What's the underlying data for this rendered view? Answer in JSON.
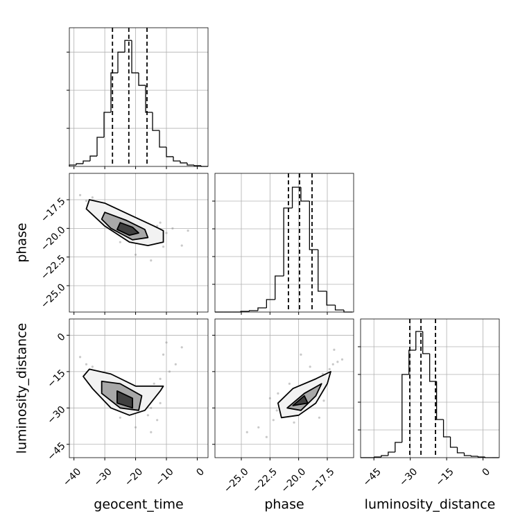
{
  "chart_data": {
    "type": "corner",
    "parameters": [
      {
        "name": "geocent_time",
        "lim": [
          -41.5,
          3.5
        ],
        "ticks": [
          {
            "value": -40,
            "label": "−40"
          },
          {
            "value": -30,
            "label": "−30"
          },
          {
            "value": -20,
            "label": "−20"
          },
          {
            "value": -10,
            "label": "−10"
          },
          0
        ],
        "quantiles": [
          -27.5,
          -22.2,
          -16.3
        ],
        "hist": {
          "bins": [
            -41.5,
            -39.25,
            -37,
            -34.75,
            -32.5,
            -30.25,
            -28,
            -25.75,
            -23.5,
            -21.25,
            -19,
            -16.75,
            -14.5,
            -12.25,
            -10,
            -7.75,
            -5.5,
            -3.25,
            -1,
            1.25,
            3.5
          ],
          "counts": [
            9,
            18,
            36,
            68,
            191,
            355,
            614,
            750,
            827,
            614,
            532,
            355,
            236,
            127,
            64,
            36,
            23,
            9,
            5,
            0
          ],
          "ylim": [
            0,
            910
          ],
          "yticks": [
            250,
            500,
            750
          ]
        }
      },
      {
        "name": "phase",
        "lim": [
          -27.3,
          -15.2
        ],
        "ticks": [
          {
            "value": -25,
            "label": "−25.0"
          },
          {
            "value": -22.5,
            "label": "−22.5"
          },
          {
            "value": -20,
            "label": "−20.0"
          },
          {
            "value": -17.5,
            "label": "−17.5"
          }
        ],
        "quantiles": [
          -20.89,
          -19.92,
          -18.83
        ],
        "hist": {
          "bins": [
            -27.3,
            -26.55,
            -25.8,
            -25.05,
            -24.3,
            -23.55,
            -22.8,
            -22.05,
            -21.3,
            -20.55,
            -19.8,
            -19.05,
            -18.3,
            -17.55,
            -16.8,
            -16.05,
            -15.3
          ],
          "counts": [
            0,
            0,
            0,
            5,
            10,
            30,
            90,
            260,
            750,
            900,
            800,
            450,
            150,
            50,
            15,
            0
          ],
          "ylim": [
            0,
            1000
          ],
          "yticks": [
            200,
            400,
            600,
            800
          ]
        }
      },
      {
        "name": "luminosity_distance",
        "lim": [
          -50.5,
          6.7
        ],
        "ticks": [
          {
            "value": -45,
            "label": "−45"
          },
          {
            "value": -30,
            "label": "−30"
          },
          {
            "value": -15,
            "label": "−15"
          },
          0
        ],
        "quantiles": [
          -30.2,
          -25.6,
          -19.6
        ],
        "hist": {
          "bins": [
            -50.5,
            -47.65,
            -44.8,
            -41.95,
            -39.1,
            -36.25,
            -33.4,
            -30.55,
            -27.7,
            -24.85,
            -22,
            -19.15,
            -16.3,
            -13.45,
            -10.6,
            -7.75,
            -4.9,
            -2.05,
            0.8,
            3.65,
            6.5
          ],
          "counts": [
            0,
            0,
            5,
            15,
            40,
            110,
            600,
            775,
            910,
            750,
            550,
            275,
            150,
            75,
            35,
            15,
            10,
            5,
            0,
            0
          ],
          "ylim": [
            0,
            1000
          ],
          "yticks": [
            200,
            400,
            600,
            800
          ]
        }
      }
    ],
    "pairs": [
      {
        "x": 0,
        "y": 1,
        "points": {
          "x": [
            -38,
            -36,
            -34,
            -33,
            -31,
            -30,
            -28,
            -27,
            -26,
            -25,
            -24,
            -23,
            -22,
            -21,
            -20,
            -19,
            -18,
            -17,
            -16,
            -15,
            -14,
            -13,
            -12,
            -11,
            -10,
            -8,
            -5,
            -3,
            -20,
            -25,
            -15,
            -12
          ],
          "y": [
            -17.1,
            -17.6,
            -17.3,
            -18.2,
            -17.9,
            -18.6,
            -18.4,
            -19.2,
            -18.9,
            -19.5,
            -19.1,
            -20.2,
            -19.7,
            -20.5,
            -19.9,
            -21,
            -20.3,
            -21.4,
            -20.6,
            -20.1,
            -21.2,
            -19.8,
            -20.9,
            -21.6,
            -20.4,
            -20,
            -21.5,
            -20.2,
            -22.3,
            -21.2,
            -22.8,
            -19.5
          ]
        },
        "contours": [
          {
            "x": [
              -35,
              -30,
              -22,
              -14,
              -11,
              -11,
              -16,
              -22,
              -30,
              -36
            ],
            "y": [
              -17.5,
              -17.8,
              -18.8,
              -19.8,
              -20.2,
              -21.2,
              -21.5,
              -21.2,
              -19.8,
              -18.3
            ]
          },
          {
            "x": [
              -30,
              -23,
              -17,
              -16,
              -21,
              -28,
              -31
            ],
            "y": [
              -18.6,
              -19.3,
              -20.1,
              -20.8,
              -21,
              -20,
              -19.2
            ]
          },
          {
            "x": [
              -25,
              -21,
              -19,
              -22,
              -26
            ],
            "y": [
              -19.5,
              -19.9,
              -20.4,
              -20.6,
              -20.1
            ]
          }
        ]
      },
      {
        "x": 0,
        "y": 2,
        "points": {
          "x": [
            -38,
            -36,
            -34,
            -32,
            -31,
            -29,
            -28,
            -27,
            -25,
            -24,
            -23,
            -22,
            -21,
            -20,
            -19,
            -18,
            -17,
            -16,
            -15,
            -14,
            -13,
            -12,
            -11,
            -10,
            -9,
            -7,
            -5,
            -20,
            -15,
            -25,
            -12,
            -30
          ],
          "y": [
            -9,
            -12,
            -13,
            -15,
            -17,
            -18,
            -21,
            -19,
            -23,
            -25,
            -22,
            -27,
            -26,
            -29,
            -28,
            -31,
            -25,
            -33,
            -30,
            -20,
            -35,
            -18,
            -8,
            -3,
            -15,
            -12,
            -5,
            -38,
            -40,
            -34,
            -28,
            -24
          ]
        },
        "contours": [
          {
            "x": [
              -35,
              -28,
              -20,
              -11,
              -12,
              -17,
              -22,
              -28,
              -34,
              -37
            ],
            "y": [
              -14,
              -16,
              -21,
              -21,
              -23,
              -31,
              -33,
              -30,
              -22,
              -17
            ]
          },
          {
            "x": [
              -31,
              -25,
              -18,
              -19,
              -25,
              -31
            ],
            "y": [
              -19,
              -20,
              -25,
              -31,
              -30,
              -24
            ]
          },
          {
            "x": [
              -26,
              -21,
              -21,
              -26
            ],
            "y": [
              -23,
              -26,
              -30,
              -28
            ]
          }
        ]
      },
      {
        "x": 1,
        "y": 2,
        "points": {
          "x": [
            -23.5,
            -22.8,
            -22.2,
            -21.9,
            -21.5,
            -21.2,
            -20.9,
            -20.6,
            -20.3,
            -20,
            -19.7,
            -19.4,
            -19.1,
            -18.8,
            -18.5,
            -18.2,
            -17.9,
            -17.6,
            -17.3,
            -17,
            -16.6,
            -16.2,
            -24.5,
            -19.8,
            -20.8,
            -18.2,
            -21.8,
            -19,
            -17.8,
            -22.5,
            -16.9,
            -20.4
          ],
          "y": [
            -38,
            -42,
            -35,
            -31,
            -33,
            -28,
            -30,
            -26,
            -29,
            -27,
            -24,
            -25,
            -22,
            -23,
            -19,
            -21,
            -16,
            -18,
            -14,
            -12,
            -11,
            -10,
            -40,
            -8,
            -20,
            -34,
            -24,
            -13,
            -27,
            -26,
            -6,
            -36
          ]
        },
        "contours": [
          {
            "x": [
              -21.8,
              -20.5,
              -18.5,
              -17.2,
              -17.5,
              -18.5,
              -20,
              -21.5
            ],
            "y": [
              -28,
              -22,
              -18,
              -15,
              -20,
              -28,
              -33,
              -34
            ]
          },
          {
            "x": [
              -21,
              -19.5,
              -18,
              -18.5,
              -19.8
            ],
            "y": [
              -30,
              -24,
              -20,
              -25,
              -31
            ]
          },
          {
            "x": [
              -20.5,
              -19.5,
              -19.2
            ],
            "y": [
              -29,
              -25,
              -28
            ]
          }
        ]
      }
    ]
  }
}
